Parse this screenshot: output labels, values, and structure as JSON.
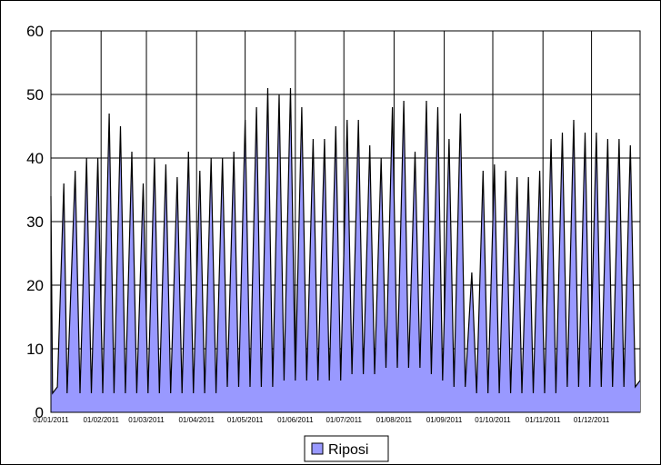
{
  "chart_data": {
    "type": "area",
    "title": "",
    "xlabel": "",
    "ylabel": "",
    "ylim": [
      0,
      60
    ],
    "yticks": [
      0,
      10,
      20,
      30,
      40,
      50,
      60
    ],
    "xlim": [
      "01/01/2011",
      "31/12/2011"
    ],
    "xtick_labels": [
      "01/01/2011",
      "01/02/2011",
      "01/03/2011",
      "01/04/2011",
      "01/05/2011",
      "01/06/2011",
      "01/07/2011",
      "01/08/2011",
      "01/09/2011",
      "01/10/2011",
      "01/11/2011",
      "01/12/2011"
    ],
    "grid": true,
    "legend": "bottom-center",
    "series": [
      {
        "name": "Riposi",
        "color": "#9999ff",
        "line_color": "#000000",
        "x": [
          "01/01/2011",
          "02/01/2011",
          "05/01/2011",
          "09/01/2011",
          "11/01/2011",
          "16/01/2011",
          "19/01/2011",
          "23/01/2011",
          "26/01/2011",
          "30/01/2011",
          "02/02/2011",
          "06/02/2011",
          "09/02/2011",
          "13/02/2011",
          "16/02/2011",
          "20/02/2011",
          "23/02/2011",
          "27/02/2011",
          "02/03/2011",
          "06/03/2011",
          "09/03/2011",
          "13/03/2011",
          "16/03/2011",
          "20/03/2011",
          "23/03/2011",
          "27/03/2011",
          "30/03/2011",
          "03/04/2011",
          "06/04/2011",
          "10/04/2011",
          "13/04/2011",
          "17/04/2011",
          "20/04/2011",
          "24/04/2011",
          "27/04/2011",
          "01/05/2011",
          "04/05/2011",
          "08/05/2011",
          "11/05/2011",
          "15/05/2011",
          "18/05/2011",
          "22/05/2011",
          "25/05/2011",
          "29/05/2011",
          "01/06/2011",
          "05/06/2011",
          "08/06/2011",
          "12/06/2011",
          "15/06/2011",
          "19/06/2011",
          "22/06/2011",
          "26/06/2011",
          "29/06/2011",
          "03/07/2011",
          "06/07/2011",
          "10/07/2011",
          "13/07/2011",
          "17/07/2011",
          "20/07/2011",
          "24/07/2011",
          "27/07/2011",
          "31/07/2011",
          "03/08/2011",
          "07/08/2011",
          "10/08/2011",
          "14/08/2011",
          "17/08/2011",
          "21/08/2011",
          "24/08/2011",
          "28/08/2011",
          "31/08/2011",
          "04/09/2011",
          "07/09/2011",
          "11/09/2011",
          "14/09/2011",
          "18/09/2011",
          "21/09/2011",
          "25/09/2011",
          "28/09/2011",
          "02/10/2011",
          "05/10/2011",
          "09/10/2011",
          "12/10/2011",
          "16/10/2011",
          "19/10/2011",
          "23/10/2011",
          "26/10/2011",
          "30/10/2011",
          "02/11/2011",
          "06/11/2011",
          "09/11/2011",
          "13/11/2011",
          "16/11/2011",
          "20/11/2011",
          "23/11/2011",
          "27/11/2011",
          "30/11/2011",
          "04/12/2011",
          "07/12/2011",
          "11/12/2011",
          "14/12/2011",
          "18/12/2011",
          "21/12/2011",
          "25/12/2011",
          "28/12/2011",
          "31/12/2011"
        ],
        "values": [
          34,
          3,
          4,
          36,
          3,
          38,
          3,
          40,
          3,
          40,
          3,
          47,
          3,
          45,
          3,
          41,
          3,
          36,
          3,
          40,
          3,
          39,
          3,
          37,
          3,
          41,
          3,
          38,
          3,
          40,
          3,
          40,
          4,
          41,
          4,
          46,
          4,
          48,
          4,
          51,
          4,
          50,
          5,
          51,
          5,
          48,
          5,
          43,
          5,
          43,
          5,
          45,
          5,
          46,
          6,
          46,
          6,
          42,
          6,
          40,
          7,
          48,
          7,
          49,
          7,
          41,
          7,
          49,
          6,
          48,
          5,
          43,
          4,
          47,
          4,
          22,
          3,
          38,
          3,
          39,
          3,
          38,
          3,
          37,
          3,
          37,
          3,
          38,
          3,
          43,
          3,
          44,
          4,
          46,
          4,
          44,
          4,
          44,
          4,
          43,
          4,
          43,
          4,
          42,
          4,
          5
        ]
      }
    ]
  }
}
